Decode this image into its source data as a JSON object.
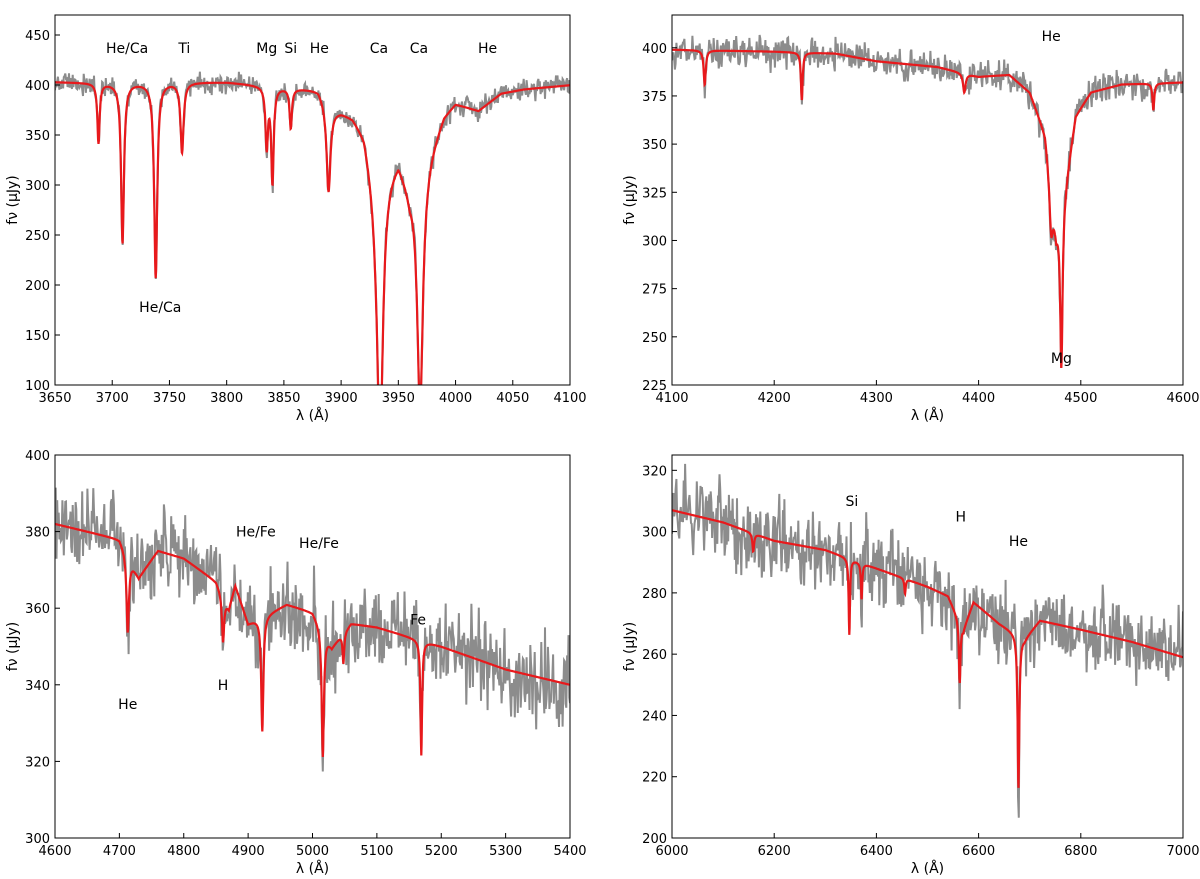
{
  "figure": {
    "description_free": true,
    "observed_color": "#8c8c8c",
    "model_color": "#e8191c"
  },
  "chart_data": [
    {
      "type": "line",
      "panel": "top-left",
      "xlabel": "λ (Å)",
      "ylabel": "fν (μJy)",
      "xlim": [
        3650,
        4100
      ],
      "ylim": [
        100,
        470
      ],
      "xticks": [
        3650,
        3700,
        3750,
        3800,
        3850,
        3900,
        3950,
        4000,
        4050,
        4100
      ],
      "yticks": [
        100,
        150,
        200,
        250,
        300,
        350,
        400,
        450
      ],
      "continuum": [
        [
          3650,
          403
        ],
        [
          3700,
          402
        ],
        [
          3750,
          403
        ],
        [
          3800,
          403
        ],
        [
          3850,
          398
        ],
        [
          3880,
          396
        ],
        [
          3890,
          378
        ],
        [
          3900,
          375
        ],
        [
          3910,
          370
        ],
        [
          3920,
          355
        ],
        [
          3930,
          300
        ],
        [
          3950,
          330
        ],
        [
          3960,
          300
        ],
        [
          3975,
          330
        ],
        [
          3990,
          372
        ],
        [
          4000,
          383
        ],
        [
          4020,
          375
        ],
        [
          4040,
          392
        ],
        [
          4060,
          396
        ],
        [
          4080,
          398
        ],
        [
          4100,
          400
        ]
      ],
      "absorption_lines": [
        {
          "x": 3688,
          "depth": 60,
          "width": 1.2
        },
        {
          "x": 3709,
          "depth": 160,
          "width": 1.5
        },
        {
          "x": 3738,
          "depth": 195,
          "width": 1.6
        },
        {
          "x": 3761,
          "depth": 70,
          "width": 1.6
        },
        {
          "x": 3835,
          "depth": 60,
          "width": 1.3
        },
        {
          "x": 3840,
          "depth": 95,
          "width": 1.3
        },
        {
          "x": 3856,
          "depth": 40,
          "width": 1.2
        },
        {
          "x": 3889,
          "depth": 85,
          "width": 2.0
        },
        {
          "x": 3934,
          "depth": 270,
          "width": 3.0
        },
        {
          "x": 3969,
          "depth": 240,
          "width": 3.0
        }
      ],
      "noise_amplitude": 8,
      "labels": [
        {
          "text": "He/Ca",
          "x": 3713,
          "y": 437
        },
        {
          "text": "He/Ca",
          "x": 3742,
          "y": 178
        },
        {
          "text": "Ti",
          "x": 3763,
          "y": 437
        },
        {
          "text": "Mg",
          "x": 3835,
          "y": 437
        },
        {
          "text": "Si",
          "x": 3856,
          "y": 437
        },
        {
          "text": "He",
          "x": 3881,
          "y": 437
        },
        {
          "text": "Ca",
          "x": 3933,
          "y": 437
        },
        {
          "text": "Ca",
          "x": 3968,
          "y": 437
        },
        {
          "text": "He",
          "x": 4028,
          "y": 437
        }
      ]
    },
    {
      "type": "line",
      "panel": "top-right",
      "xlabel": "λ (Å)",
      "ylabel": "fν (μJy)",
      "xlim": [
        4100,
        4600
      ],
      "ylim": [
        225,
        417
      ],
      "xticks": [
        4100,
        4200,
        4300,
        4400,
        4500,
        4600
      ],
      "yticks": [
        225,
        250,
        275,
        300,
        325,
        350,
        375,
        400
      ],
      "continuum": [
        [
          4100,
          399
        ],
        [
          4200,
          398
        ],
        [
          4260,
          397
        ],
        [
          4300,
          393
        ],
        [
          4360,
          390
        ],
        [
          4400,
          385
        ],
        [
          4430,
          386
        ],
        [
          4450,
          377
        ],
        [
          4465,
          356
        ],
        [
          4476,
          307
        ],
        [
          4485,
          330
        ],
        [
          4495,
          365
        ],
        [
          4510,
          377
        ],
        [
          4540,
          381
        ],
        [
          4600,
          382
        ]
      ],
      "absorption_lines": [
        {
          "x": 4132,
          "depth": 18,
          "width": 1.2
        },
        {
          "x": 4227,
          "depth": 25,
          "width": 1.0
        },
        {
          "x": 4386,
          "depth": 10,
          "width": 1.5
        },
        {
          "x": 4471,
          "depth": 25,
          "width": 2.0
        },
        {
          "x": 4481,
          "depth": 85,
          "width": 1.4
        },
        {
          "x": 4571,
          "depth": 14,
          "width": 1.0
        }
      ],
      "noise_amplitude": 6,
      "labels": [
        {
          "text": "He",
          "x": 4471,
          "y": 406
        },
        {
          "text": "Mg",
          "x": 4481,
          "y": 239
        }
      ]
    },
    {
      "type": "line",
      "panel": "bottom-left",
      "xlabel": "λ (Å)",
      "ylabel": "fν (μJy)",
      "xlim": [
        4600,
        5400
      ],
      "ylim": [
        300,
        400
      ],
      "xticks": [
        4600,
        4700,
        4800,
        4900,
        5000,
        5100,
        5200,
        5300,
        5400
      ],
      "yticks": [
        300,
        320,
        340,
        360,
        380,
        400
      ],
      "continuum": [
        [
          4600,
          382
        ],
        [
          4700,
          378
        ],
        [
          4730,
          368
        ],
        [
          4760,
          375
        ],
        [
          4800,
          373
        ],
        [
          4850,
          367
        ],
        [
          4870,
          360
        ],
        [
          4880,
          366
        ],
        [
          4900,
          356
        ],
        [
          4960,
          361
        ],
        [
          5000,
          359
        ],
        [
          5030,
          350
        ],
        [
          5060,
          356
        ],
        [
          5100,
          355
        ],
        [
          5200,
          350
        ],
        [
          5300,
          344
        ],
        [
          5400,
          340
        ]
      ],
      "absorption_lines": [
        {
          "x": 4713,
          "depth": 20,
          "width": 2.2
        },
        {
          "x": 4861,
          "depth": 12,
          "width": 2.0
        },
        {
          "x": 4922,
          "depth": 30,
          "width": 2.0
        },
        {
          "x": 5016,
          "depth": 33,
          "width": 2.0
        },
        {
          "x": 5048,
          "depth": 8,
          "width": 1.5
        },
        {
          "x": 5169,
          "depth": 30,
          "width": 1.5
        }
      ],
      "noise_amplitude": 8,
      "labels": [
        {
          "text": "He",
          "x": 4713,
          "y": 335
        },
        {
          "text": "H",
          "x": 4861,
          "y": 340
        },
        {
          "text": "He/Fe",
          "x": 4912,
          "y": 380
        },
        {
          "text": "He/Fe",
          "x": 5010,
          "y": 377
        },
        {
          "text": "Fe",
          "x": 5164,
          "y": 357
        }
      ]
    },
    {
      "type": "line",
      "panel": "bottom-right",
      "xlabel": "λ (Å)",
      "ylabel": "fν (μJy)",
      "xlim": [
        6000,
        7000
      ],
      "ylim": [
        200,
        325
      ],
      "xticks": [
        6000,
        6200,
        6400,
        6600,
        6800,
        7000
      ],
      "yticks": [
        200,
        220,
        240,
        260,
        280,
        300,
        320
      ],
      "continuum": [
        [
          6000,
          307
        ],
        [
          6100,
          303
        ],
        [
          6200,
          297
        ],
        [
          6300,
          294
        ],
        [
          6400,
          288
        ],
        [
          6500,
          282
        ],
        [
          6540,
          279
        ],
        [
          6570,
          268
        ],
        [
          6590,
          277
        ],
        [
          6640,
          270
        ],
        [
          6690,
          265
        ],
        [
          6720,
          271
        ],
        [
          6800,
          268
        ],
        [
          6900,
          264
        ],
        [
          7000,
          259
        ]
      ],
      "absorption_lines": [
        {
          "x": 6159,
          "depth": 6,
          "width": 2.0
        },
        {
          "x": 6347,
          "depth": 25,
          "width": 1.5
        },
        {
          "x": 6371,
          "depth": 12,
          "width": 1.5
        },
        {
          "x": 6456,
          "depth": 5,
          "width": 1.5
        },
        {
          "x": 6563,
          "depth": 20,
          "width": 1.8
        },
        {
          "x": 6678,
          "depth": 50,
          "width": 2.0
        }
      ],
      "noise_amplitude": 10,
      "labels": [
        {
          "text": "Si",
          "x": 6352,
          "y": 310
        },
        {
          "text": "H",
          "x": 6565,
          "y": 305
        },
        {
          "text": "He",
          "x": 6678,
          "y": 297
        }
      ]
    }
  ]
}
